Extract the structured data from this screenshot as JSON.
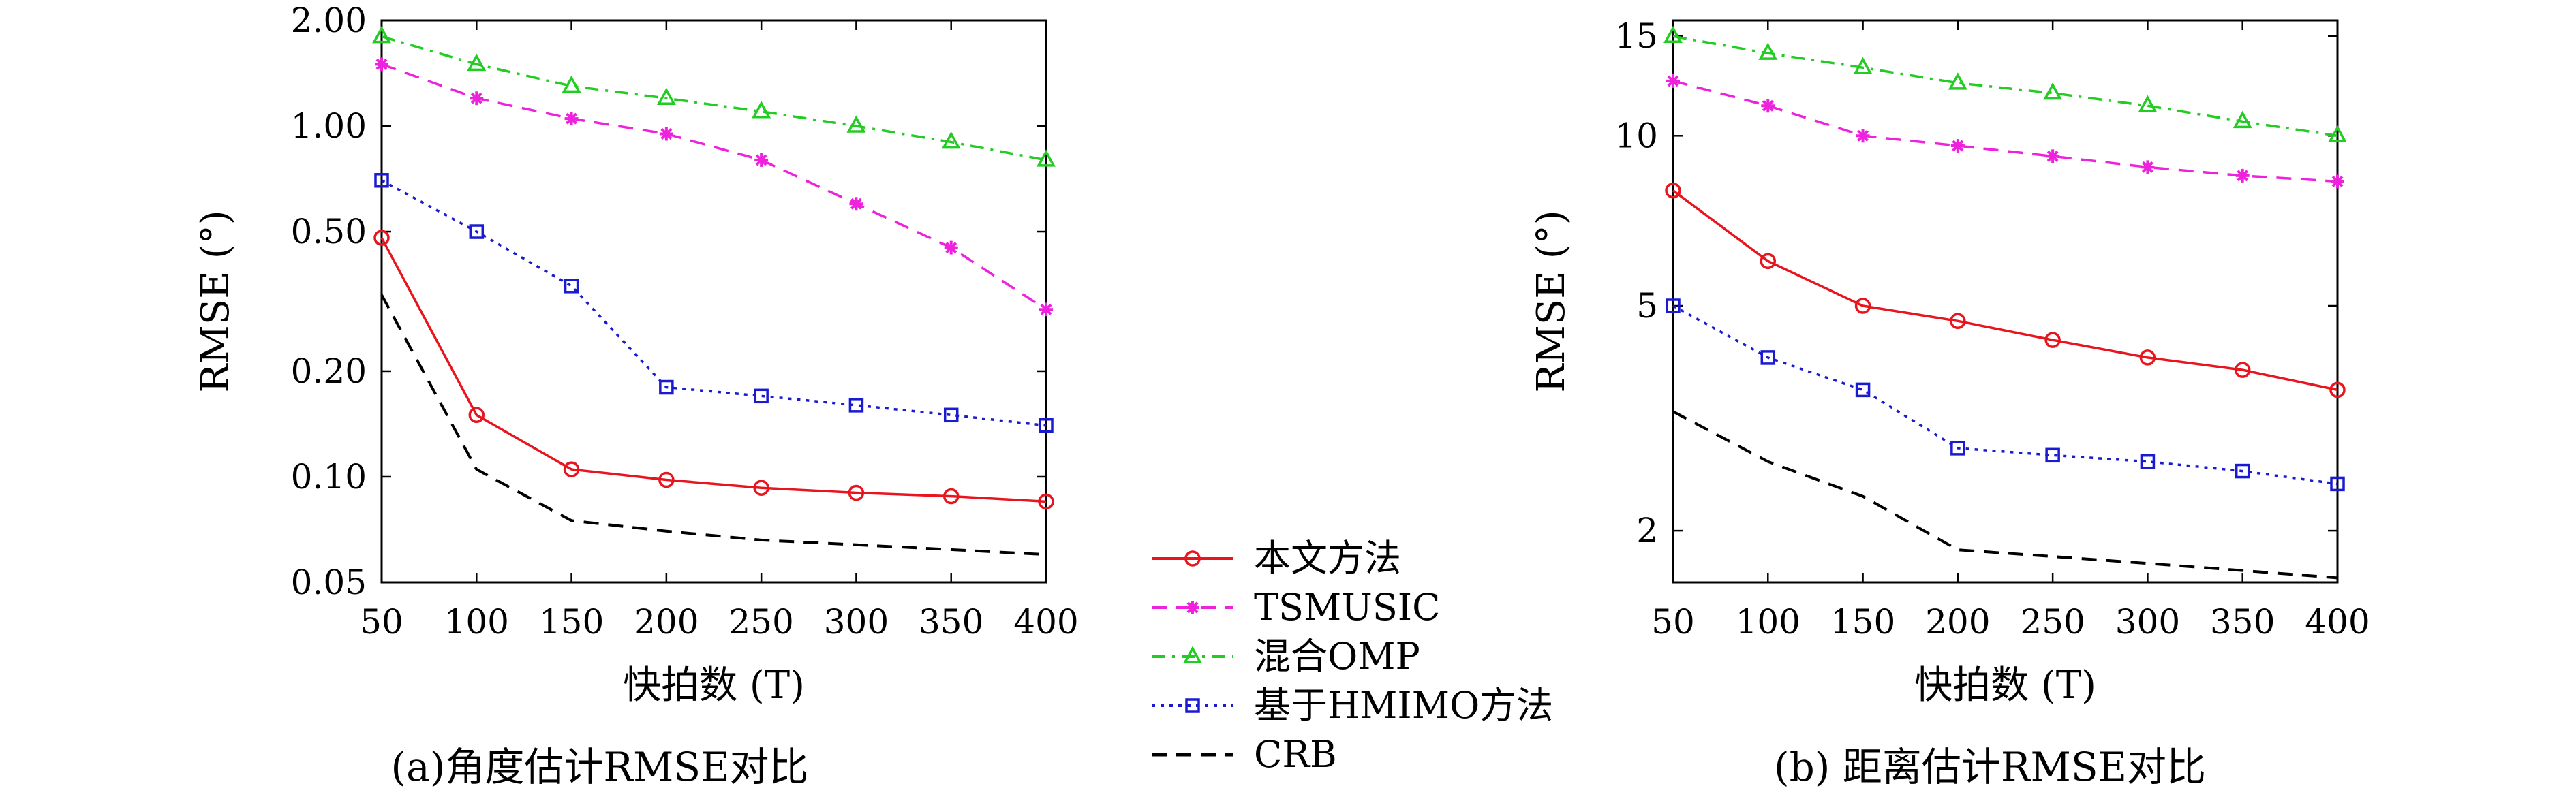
{
  "chart_data": [
    {
      "type": "line",
      "caption": "(a)角度估计RMSE对比",
      "xlabel": "快拍数 (T)",
      "ylabel": "RMSE (°)",
      "yscale": "log",
      "xlim": [
        50,
        400
      ],
      "ylim": [
        0.05,
        2.0
      ],
      "xticks": [
        "50",
        "100",
        "150",
        "200",
        "250",
        "300",
        "350",
        "400"
      ],
      "yticks": [
        {
          "value": 0.05,
          "label": "0.05"
        },
        {
          "value": 0.1,
          "label": "0.10"
        },
        {
          "value": 0.2,
          "label": "0.20"
        },
        {
          "value": 0.5,
          "label": "0.50"
        },
        {
          "value": 1.0,
          "label": "1.00"
        },
        {
          "value": 2.0,
          "label": "2.00"
        }
      ],
      "x": [
        50,
        100,
        150,
        200,
        250,
        300,
        350,
        400
      ],
      "series": [
        {
          "name": "本文方法",
          "color": "#e8141e",
          "marker": "circle",
          "dash": "solid",
          "values": [
            0.48,
            0.15,
            0.105,
            0.098,
            0.093,
            0.09,
            0.088,
            0.085
          ]
        },
        {
          "name": "TSMUSIC",
          "color": "#ee22dd",
          "marker": "star",
          "dash": "dashed",
          "values": [
            1.5,
            1.2,
            1.05,
            0.95,
            0.8,
            0.6,
            0.45,
            0.3
          ]
        },
        {
          "name": "混合OMP",
          "color": "#22cc22",
          "marker": "triangle",
          "dash": "dashdot",
          "values": [
            1.8,
            1.5,
            1.3,
            1.2,
            1.1,
            1.0,
            0.9,
            0.8
          ]
        },
        {
          "name": "基于HMIMO方法",
          "color": "#1a1ad0",
          "marker": "square",
          "dash": "dotted",
          "values": [
            0.7,
            0.5,
            0.35,
            0.18,
            0.17,
            0.16,
            0.15,
            0.14
          ]
        },
        {
          "name": "CRB",
          "color": "#000000",
          "marker": "none",
          "dash": "dashed",
          "values": [
            0.33,
            0.105,
            0.075,
            0.07,
            0.066,
            0.064,
            0.062,
            0.06
          ]
        }
      ]
    },
    {
      "type": "line",
      "caption": "(b) 距离估计RMSE对比",
      "xlabel": "快拍数 (T)",
      "ylabel": "RMSE (°)",
      "yscale": "log",
      "xlim": [
        50,
        400
      ],
      "ylim": [
        1.62,
        16.0
      ],
      "xticks": [
        "50",
        "100",
        "150",
        "200",
        "250",
        "300",
        "350",
        "400"
      ],
      "yticks": [
        {
          "value": 2,
          "label": "2"
        },
        {
          "value": 5,
          "label": "5"
        },
        {
          "value": 10,
          "label": "10"
        },
        {
          "value": 15,
          "label": "15"
        }
      ],
      "x": [
        50,
        100,
        150,
        200,
        250,
        300,
        350,
        400
      ],
      "series": [
        {
          "name": "本文方法",
          "color": "#e8141e",
          "marker": "circle",
          "dash": "solid",
          "values": [
            8.0,
            6.0,
            5.0,
            4.7,
            4.35,
            4.05,
            3.85,
            3.55
          ]
        },
        {
          "name": "TSMUSIC",
          "color": "#ee22dd",
          "marker": "star",
          "dash": "dashed",
          "values": [
            12.5,
            11.3,
            10.0,
            9.6,
            9.2,
            8.8,
            8.5,
            8.3
          ]
        },
        {
          "name": "混合OMP",
          "color": "#22cc22",
          "marker": "triangle",
          "dash": "dashdot",
          "values": [
            15.0,
            14.0,
            13.2,
            12.4,
            11.9,
            11.3,
            10.6,
            10.0
          ]
        },
        {
          "name": "基于HMIMO方法",
          "color": "#1a1ad0",
          "marker": "square",
          "dash": "dotted",
          "values": [
            5.0,
            4.05,
            3.55,
            2.8,
            2.72,
            2.65,
            2.55,
            2.42
          ]
        },
        {
          "name": "CRB",
          "color": "#000000",
          "marker": "none",
          "dash": "dashed",
          "values": [
            3.25,
            2.65,
            2.3,
            1.85,
            1.8,
            1.75,
            1.7,
            1.65
          ]
        }
      ]
    }
  ],
  "legend": {
    "placement": "bottom-center",
    "entries": [
      "本文方法",
      "TSMUSIC",
      "混合OMP",
      "基于HMIMO方法",
      "CRB"
    ]
  }
}
